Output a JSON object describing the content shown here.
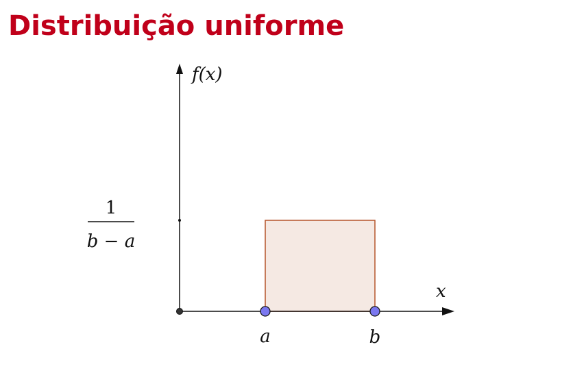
{
  "title": "Distribuição uniforme",
  "axes": {
    "y_label": "f(x)",
    "x_label": "x"
  },
  "height_label": {
    "numerator": "1",
    "denominator": "b − a"
  },
  "points": {
    "a_label": "a",
    "b_label": "b"
  },
  "colors": {
    "title": "#c0001a",
    "rect_fill": "#f5e9e3",
    "rect_stroke": "#b5542a",
    "point_fill": "#7b78f0",
    "axis": "#111111"
  }
}
